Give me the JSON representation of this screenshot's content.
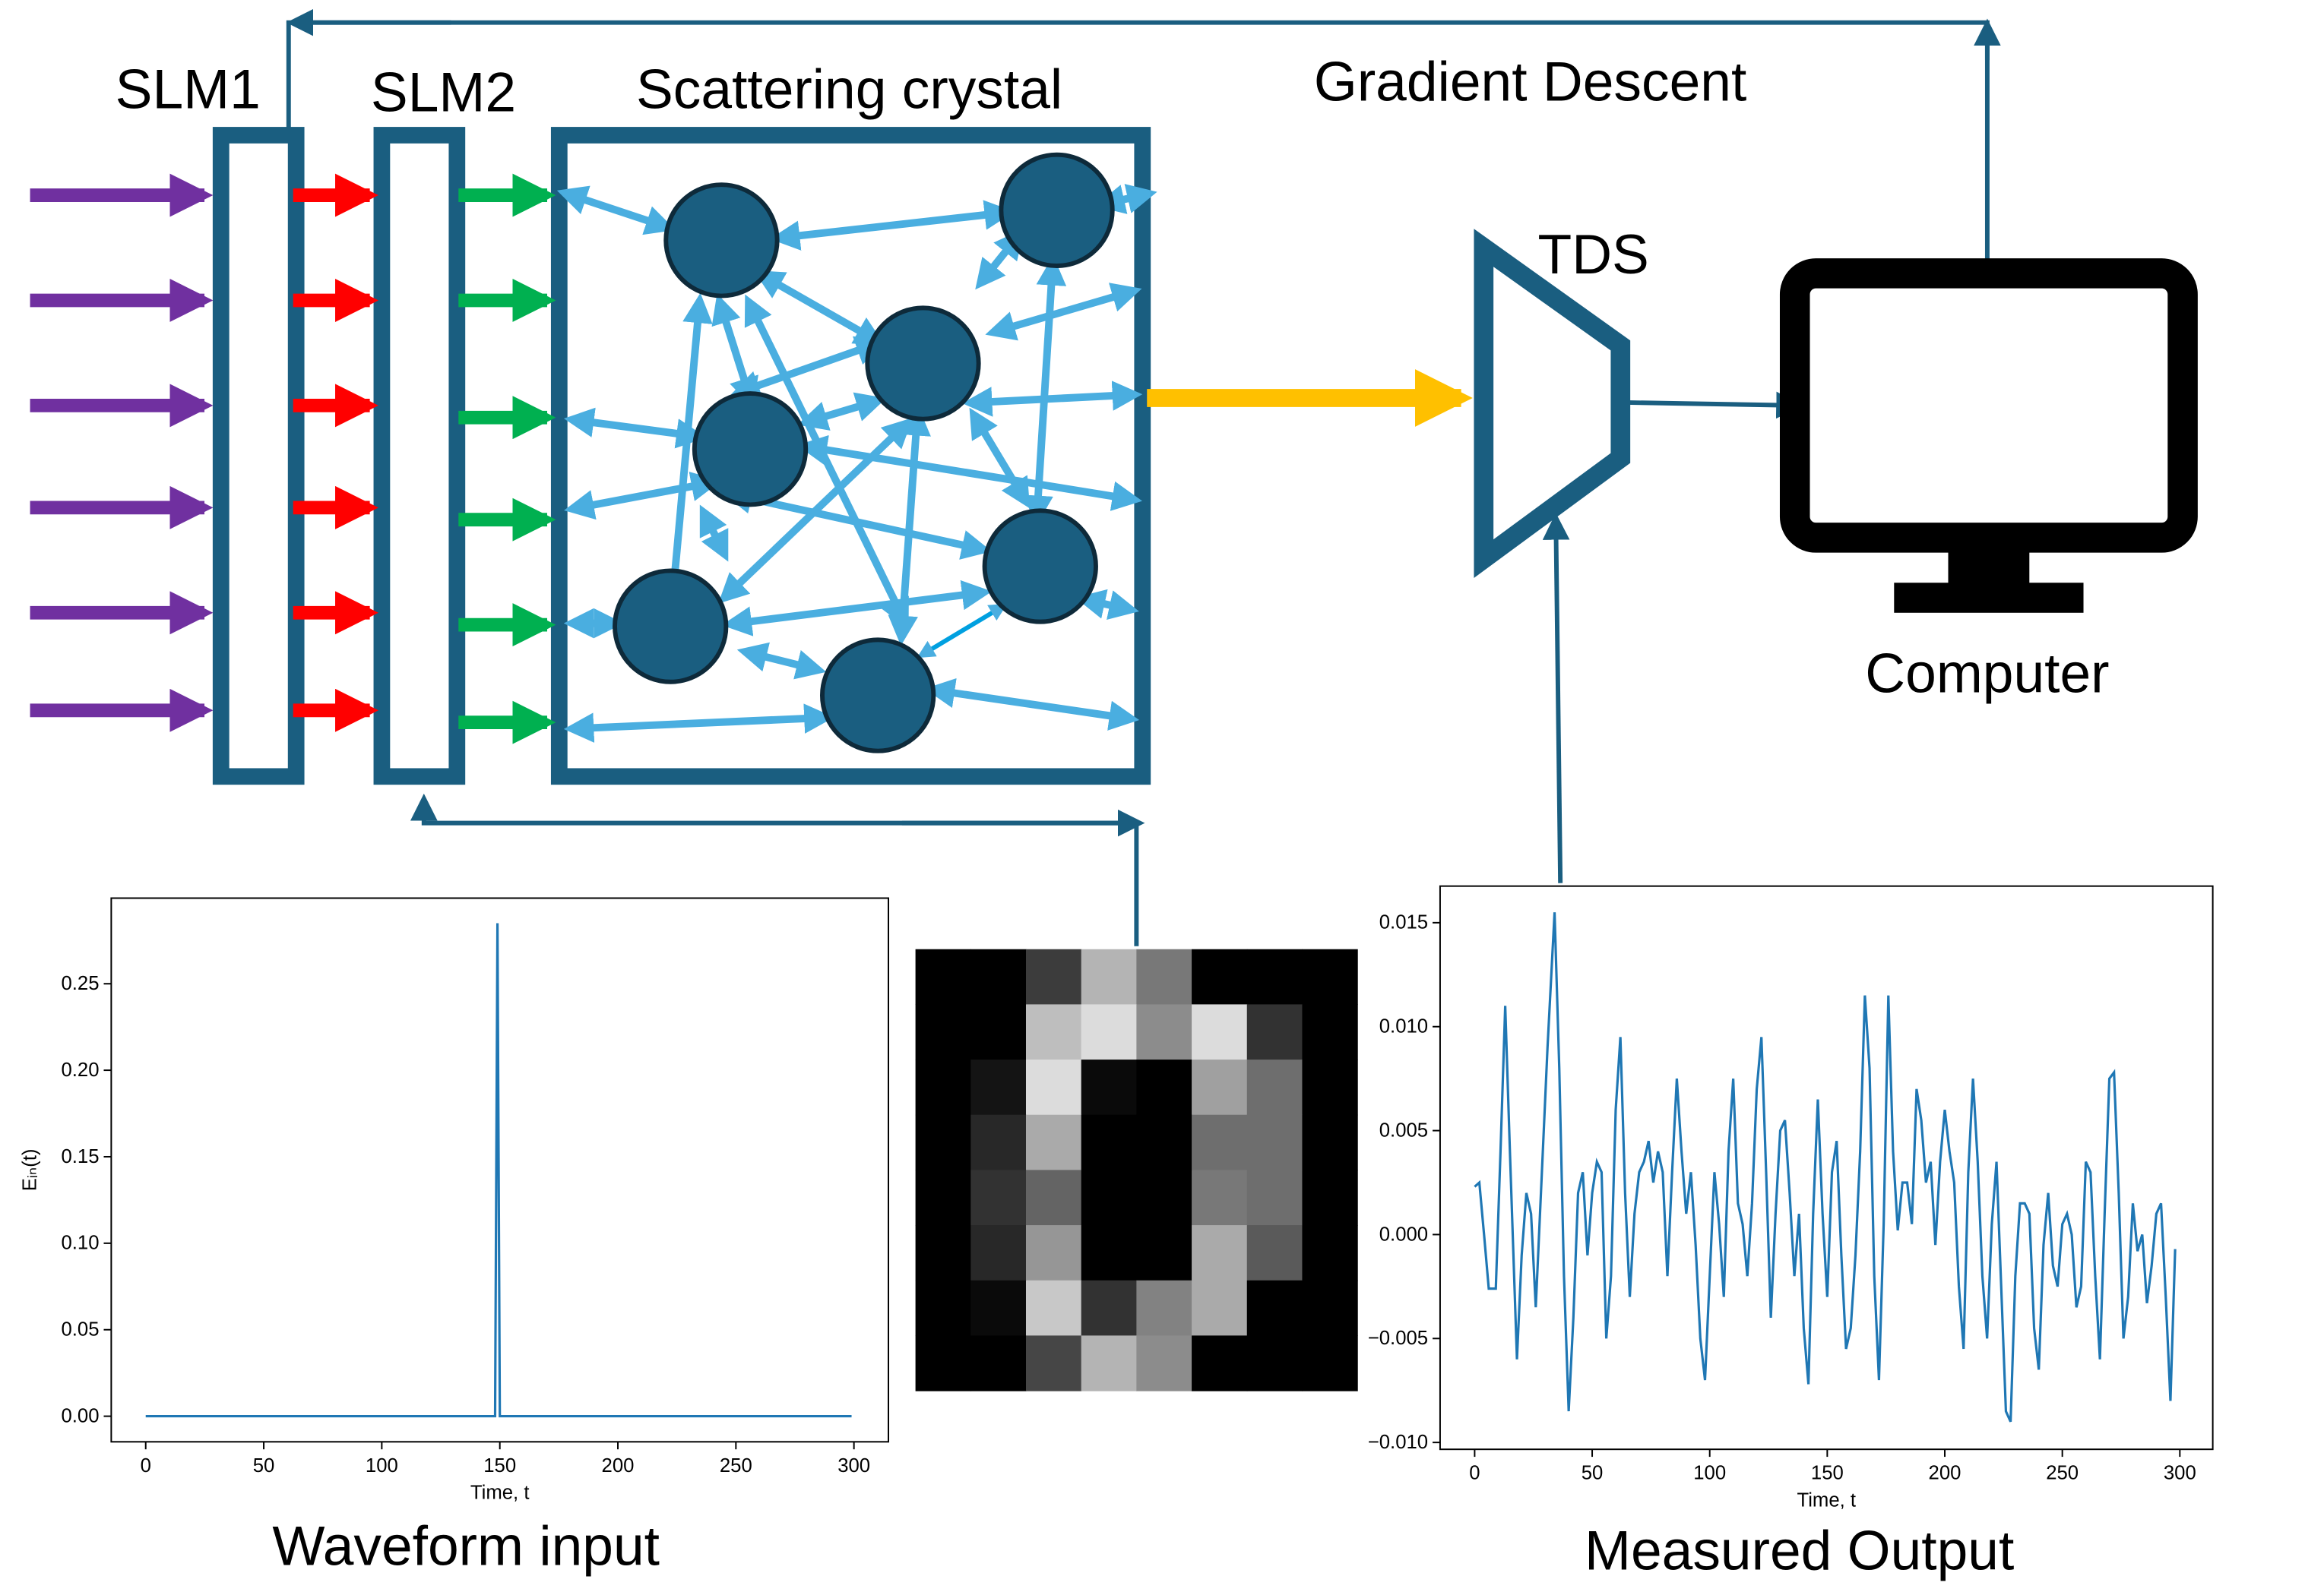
{
  "labels": {
    "slm1": "SLM1",
    "slm2": "SLM2",
    "crystal": "Scattering crystal",
    "gradient": "Gradient Descent",
    "tds": "TDS",
    "computer": "Computer",
    "waveform": "Waveform input",
    "measured": "Measured Output"
  },
  "chart_data": [
    {
      "type": "line",
      "xlabel": "Time, t",
      "ylabel": "Eᵢₙ(t)",
      "x": [
        0,
        148,
        149,
        150,
        299
      ],
      "values": [
        0,
        0,
        0.285,
        0,
        0
      ],
      "color": "#1f77b4",
      "xlim": [
        -14.6,
        314.6
      ],
      "ylim": [
        -0.0148,
        0.2995
      ],
      "xticks": [
        0,
        50,
        100,
        150,
        200,
        250,
        300
      ],
      "yticks": [
        {
          "value": 0,
          "label": "0.00"
        },
        {
          "value": 0.05,
          "label": "0.05"
        },
        {
          "value": 0.1,
          "label": "0.10"
        },
        {
          "value": 0.15,
          "label": "0.15"
        },
        {
          "value": 0.2,
          "label": "0.20"
        },
        {
          "value": 0.25,
          "label": "0.25"
        }
      ]
    },
    {
      "type": "line",
      "xlabel": "Time, t",
      "color": "#1f77b4",
      "x": [
        0,
        2,
        4,
        6,
        9,
        11,
        13,
        15,
        18,
        20,
        22,
        24,
        26,
        29,
        31,
        34,
        36,
        38,
        40,
        42,
        44,
        46,
        48,
        50,
        52,
        54,
        56,
        58,
        60,
        62,
        64,
        66,
        68,
        70,
        72,
        74,
        76,
        78,
        80,
        82,
        84,
        86,
        88,
        90,
        92,
        94,
        96,
        98,
        100,
        102,
        104,
        106,
        108,
        110,
        112,
        114,
        116,
        118,
        120,
        122,
        124,
        126,
        128,
        130,
        132,
        134,
        136,
        138,
        140,
        142,
        144,
        146,
        148,
        150,
        152,
        154,
        156,
        158,
        160,
        162,
        164,
        166,
        168,
        170,
        172,
        174,
        176,
        178,
        180,
        182,
        184,
        186,
        188,
        190,
        192,
        194,
        196,
        198,
        200,
        202,
        204,
        206,
        208,
        210,
        212,
        214,
        216,
        218,
        220,
        222,
        224,
        226,
        228,
        230,
        232,
        234,
        236,
        238,
        240,
        242,
        244,
        246,
        248,
        250,
        252,
        254,
        256,
        258,
        260,
        262,
        264,
        266,
        268,
        270,
        272,
        274,
        276,
        278,
        280,
        282,
        284,
        286,
        288,
        290,
        292,
        294,
        296,
        298
      ],
      "values": [
        0.0023,
        0.0025,
        0.0,
        -0.0026,
        -0.0026,
        0.004,
        0.011,
        0.004,
        -0.006,
        -0.001,
        0.002,
        0.001,
        -0.0035,
        0.004,
        0.009,
        0.0155,
        0.008,
        -0.002,
        -0.0085,
        -0.004,
        0.002,
        0.003,
        -0.001,
        0.002,
        0.0035,
        0.003,
        -0.005,
        -0.002,
        0.006,
        0.0095,
        0.002,
        -0.003,
        0.001,
        0.003,
        0.0035,
        0.0045,
        0.0025,
        0.004,
        0.003,
        -0.002,
        0.003,
        0.0075,
        0.004,
        0.001,
        0.003,
        -0.0005,
        -0.005,
        -0.007,
        -0.002,
        0.003,
        0.0005,
        -0.003,
        0.004,
        0.0075,
        0.0015,
        0.0005,
        -0.002,
        0.0015,
        0.007,
        0.0095,
        0.003,
        -0.004,
        0.001,
        0.005,
        0.0055,
        0.002,
        -0.002,
        0.001,
        -0.0045,
        -0.0072,
        0.001,
        0.0065,
        0.001,
        -0.003,
        0.003,
        0.0045,
        -0.001,
        -0.0055,
        -0.0045,
        -0.001,
        0.004,
        0.0115,
        0.008,
        -0.002,
        -0.007,
        0.0005,
        0.0115,
        0.004,
        0.0002,
        0.0025,
        0.0025,
        0.0005,
        0.007,
        0.0055,
        0.0025,
        0.0035,
        -0.0005,
        0.0035,
        0.006,
        0.004,
        0.0025,
        -0.0025,
        -0.0055,
        0.003,
        0.0075,
        0.0035,
        -0.002,
        -0.005,
        0.0005,
        0.0035,
        -0.0025,
        -0.0085,
        -0.009,
        -0.002,
        0.0015,
        0.0015,
        0.001,
        -0.0045,
        -0.0065,
        -0.0005,
        0.002,
        -0.0015,
        -0.0025,
        0.0005,
        0.001,
        0.0,
        -0.0035,
        -0.0025,
        0.0035,
        0.003,
        -0.002,
        -0.006,
        0.001,
        0.0075,
        0.0078,
        0.002,
        -0.005,
        -0.003,
        0.0015,
        -0.0008,
        0.0,
        -0.0033,
        -0.0015,
        0.001,
        0.0015,
        -0.003,
        -0.008,
        -0.0007
      ],
      "xlim": [
        -14.7,
        314
      ],
      "ylim": [
        -0.01033,
        0.01676
      ],
      "xticks": [
        0,
        50,
        100,
        150,
        200,
        250,
        300
      ],
      "yticks": [
        {
          "value": -0.01,
          "label": "−0.010"
        },
        {
          "value": -0.005,
          "label": "−0.005"
        },
        {
          "value": 0,
          "label": "0.000"
        },
        {
          "value": 0.005,
          "label": "0.005"
        },
        {
          "value": 0.01,
          "label": "0.010"
        },
        {
          "value": 0.015,
          "label": "0.015"
        }
      ]
    },
    {
      "type": "heatmap",
      "pixels": [
        [
          0,
          0,
          60,
          180,
          120,
          0,
          0,
          0
        ],
        [
          0,
          0,
          190,
          220,
          140,
          220,
          50,
          0
        ],
        [
          0,
          20,
          220,
          10,
          0,
          160,
          110,
          0
        ],
        [
          0,
          40,
          170,
          0,
          0,
          110,
          110,
          0
        ],
        [
          0,
          50,
          100,
          0,
          0,
          120,
          110,
          0
        ],
        [
          0,
          40,
          150,
          0,
          0,
          170,
          90,
          0
        ],
        [
          0,
          10,
          200,
          50,
          130,
          170,
          0,
          0
        ],
        [
          0,
          0,
          70,
          180,
          140,
          0,
          0,
          0
        ]
      ]
    }
  ]
}
